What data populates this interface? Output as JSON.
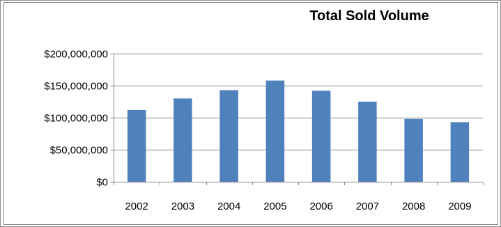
{
  "chart_data": {
    "type": "bar",
    "title": "Total Sold Volume",
    "xlabel": "",
    "ylabel": "",
    "categories": [
      "2002",
      "2003",
      "2004",
      "2005",
      "2006",
      "2007",
      "2008",
      "2009"
    ],
    "values": [
      112000000,
      130000000,
      143000000,
      158000000,
      142000000,
      125000000,
      98000000,
      93000000
    ],
    "ylim": [
      0,
      200000000
    ],
    "yticks": [
      0,
      50000000,
      100000000,
      150000000,
      200000000
    ],
    "ytick_labels": [
      "$0",
      "$50,000,000",
      "$100,000,000",
      "$150,000,000",
      "$200,000,000"
    ],
    "bar_color": "#4f81bd",
    "grid": true,
    "legend": "none"
  }
}
